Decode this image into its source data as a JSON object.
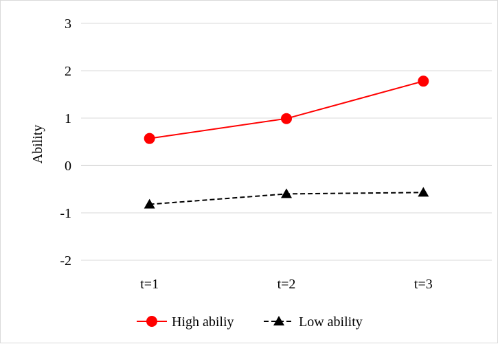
{
  "chart_data": {
    "type": "line",
    "title": "",
    "xlabel": "",
    "ylabel": "Ability",
    "ylim": [
      -2,
      3
    ],
    "yticks": [
      3,
      2,
      1,
      0,
      -1,
      -2
    ],
    "ytick_labels": [
      "3",
      "2",
      "1",
      "0",
      "-1",
      "-2"
    ],
    "categories": [
      "t=1",
      "t=2",
      "t=3"
    ],
    "grid": "horizontal",
    "legend_position": "bottom",
    "series": [
      {
        "name": "High abiliy",
        "values": [
          0.57,
          0.99,
          1.78
        ],
        "color": "#ff0000",
        "line_style": "solid",
        "marker": "circle"
      },
      {
        "name": "Low ability",
        "values": [
          -0.82,
          -0.6,
          -0.57
        ],
        "color": "#000000",
        "line_style": "dashed",
        "marker": "triangle"
      }
    ]
  }
}
